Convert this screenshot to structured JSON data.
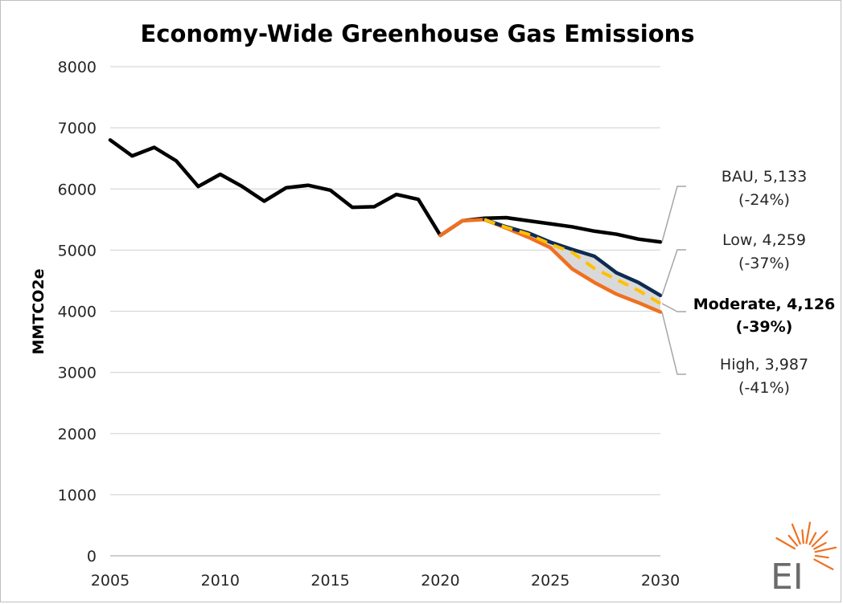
{
  "chart_data": {
    "type": "line",
    "title": "Economy-Wide Greenhouse Gas Emissions",
    "ylabel": "MMTCO2e",
    "xlabel": "",
    "xlim": [
      2005,
      2030
    ],
    "ylim": [
      0,
      8000
    ],
    "x_ticks": [
      2005,
      2010,
      2015,
      2020,
      2025,
      2030
    ],
    "y_ticks": [
      0,
      1000,
      2000,
      3000,
      4000,
      5000,
      6000,
      7000,
      8000
    ],
    "grid": "horizontal",
    "series": [
      {
        "name": "BAU",
        "color": "#000000",
        "style": "solid",
        "points": [
          [
            2005,
            6800
          ],
          [
            2006,
            6540
          ],
          [
            2007,
            6680
          ],
          [
            2008,
            6460
          ],
          [
            2009,
            6040
          ],
          [
            2010,
            6240
          ],
          [
            2011,
            6040
          ],
          [
            2012,
            5800
          ],
          [
            2013,
            6020
          ],
          [
            2014,
            6060
          ],
          [
            2015,
            5980
          ],
          [
            2016,
            5700
          ],
          [
            2017,
            5710
          ],
          [
            2018,
            5910
          ],
          [
            2019,
            5830
          ],
          [
            2020,
            5240
          ],
          [
            2021,
            5480
          ],
          [
            2022,
            5520
          ],
          [
            2023,
            5530
          ],
          [
            2024,
            5480
          ],
          [
            2025,
            5430
          ],
          [
            2026,
            5380
          ],
          [
            2027,
            5310
          ],
          [
            2028,
            5260
          ],
          [
            2029,
            5180
          ],
          [
            2030,
            5133
          ]
        ]
      },
      {
        "name": "Low",
        "color": "#0d2b52",
        "style": "solid",
        "points": [
          [
            2022,
            5500
          ],
          [
            2023,
            5380
          ],
          [
            2024,
            5280
          ],
          [
            2025,
            5130
          ],
          [
            2026,
            5010
          ],
          [
            2027,
            4900
          ],
          [
            2028,
            4630
          ],
          [
            2029,
            4470
          ],
          [
            2030,
            4259
          ]
        ]
      },
      {
        "name": "Moderate",
        "color": "#ffc000",
        "style": "dashed",
        "points": [
          [
            2022,
            5500
          ],
          [
            2023,
            5370
          ],
          [
            2024,
            5260
          ],
          [
            2025,
            5100
          ],
          [
            2026,
            4960
          ],
          [
            2027,
            4700
          ],
          [
            2028,
            4520
          ],
          [
            2029,
            4340
          ],
          [
            2030,
            4126
          ]
        ]
      },
      {
        "name": "High",
        "color": "#f07020",
        "style": "solid",
        "points": [
          [
            2020,
            5240
          ],
          [
            2021,
            5480
          ],
          [
            2022,
            5500
          ],
          [
            2023,
            5360
          ],
          [
            2024,
            5210
          ],
          [
            2025,
            5040
          ],
          [
            2026,
            4690
          ],
          [
            2027,
            4470
          ],
          [
            2028,
            4280
          ],
          [
            2029,
            4140
          ],
          [
            2030,
            3987
          ]
        ]
      }
    ],
    "annotations": [
      {
        "series": "BAU",
        "line1": "BAU,  5,133",
        "line2": "(-24%)",
        "bold": false
      },
      {
        "series": "Low",
        "line1": "Low,  4,259",
        "line2": "(-37%)",
        "bold": false
      },
      {
        "series": "Moderate",
        "line1": "Moderate, 4,126",
        "line2": "(-39%)",
        "bold": true
      },
      {
        "series": "High",
        "line1": "High,  3,987",
        "line2": "(-41%)",
        "bold": false
      }
    ]
  },
  "logo": {
    "text": "EI",
    "icon": "sunburst-icon",
    "color": "#f07020"
  }
}
